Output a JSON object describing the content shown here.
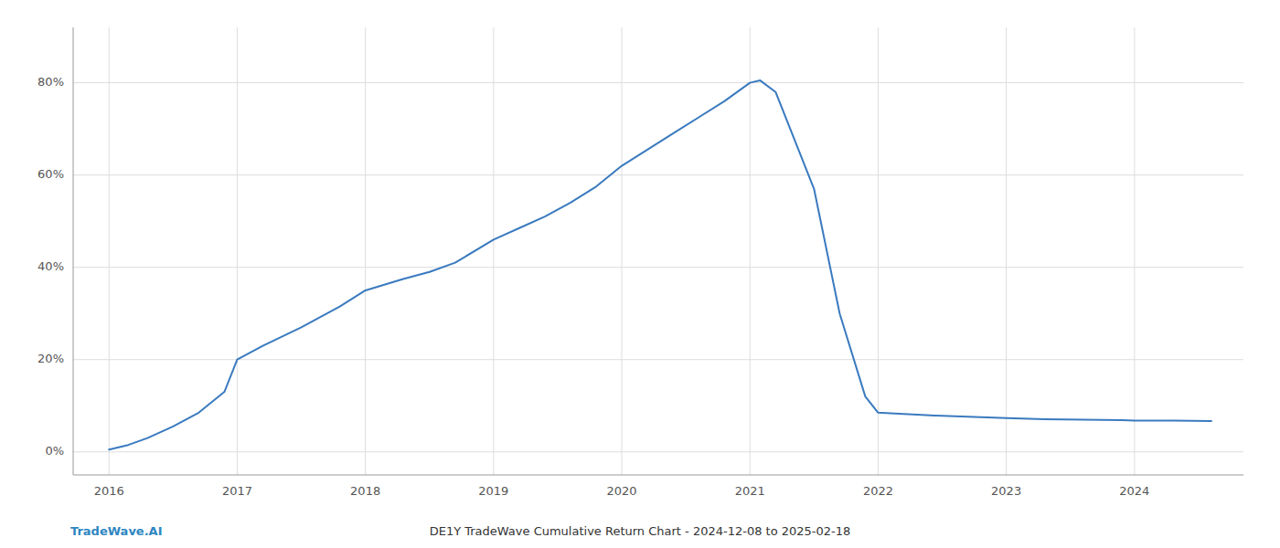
{
  "chart_data": {
    "type": "line",
    "title": "DE1Y TradeWave Cumulative Return Chart - 2024-12-08 to 2025-02-18",
    "annotations": [
      "TradeWave.AI"
    ],
    "x": [
      2016.0,
      2016.15,
      2016.3,
      2016.5,
      2016.7,
      2016.9,
      2017.0,
      2017.2,
      2017.5,
      2017.8,
      2018.0,
      2018.3,
      2018.5,
      2018.7,
      2019.0,
      2019.2,
      2019.4,
      2019.6,
      2019.8,
      2020.0,
      2020.2,
      2020.4,
      2020.6,
      2020.8,
      2021.0,
      2021.08,
      2021.2,
      2021.5,
      2021.7,
      2021.9,
      2022.0,
      2022.2,
      2022.5,
      2022.8,
      2023.0,
      2023.3,
      2023.6,
      2023.9,
      2024.0,
      2024.3,
      2024.6
    ],
    "values": [
      0.5,
      1.5,
      3.0,
      5.5,
      8.5,
      13.0,
      20.0,
      23.0,
      27.0,
      31.5,
      35.0,
      37.5,
      39.0,
      41.0,
      46.0,
      48.5,
      51.0,
      54.0,
      57.5,
      62.0,
      65.5,
      69.0,
      72.5,
      76.0,
      80.0,
      80.5,
      78.0,
      57.0,
      30.0,
      12.0,
      8.5,
      8.2,
      7.8,
      7.5,
      7.3,
      7.1,
      7.0,
      6.9,
      6.8,
      6.8,
      6.7
    ],
    "color": "#3a7abf",
    "xlim": [
      2015.72,
      2024.85
    ],
    "ylim": [
      -5,
      92
    ],
    "xticks": [
      2016,
      2017,
      2018,
      2019,
      2020,
      2021,
      2022,
      2023,
      2024
    ],
    "yticks": [
      {
        "value": 0,
        "label": "0%"
      },
      {
        "value": 20,
        "label": "20%"
      },
      {
        "value": 40,
        "label": "40%"
      },
      {
        "value": 60,
        "label": "60%"
      },
      {
        "value": 80,
        "label": "80%"
      }
    ],
    "grid": true
  }
}
